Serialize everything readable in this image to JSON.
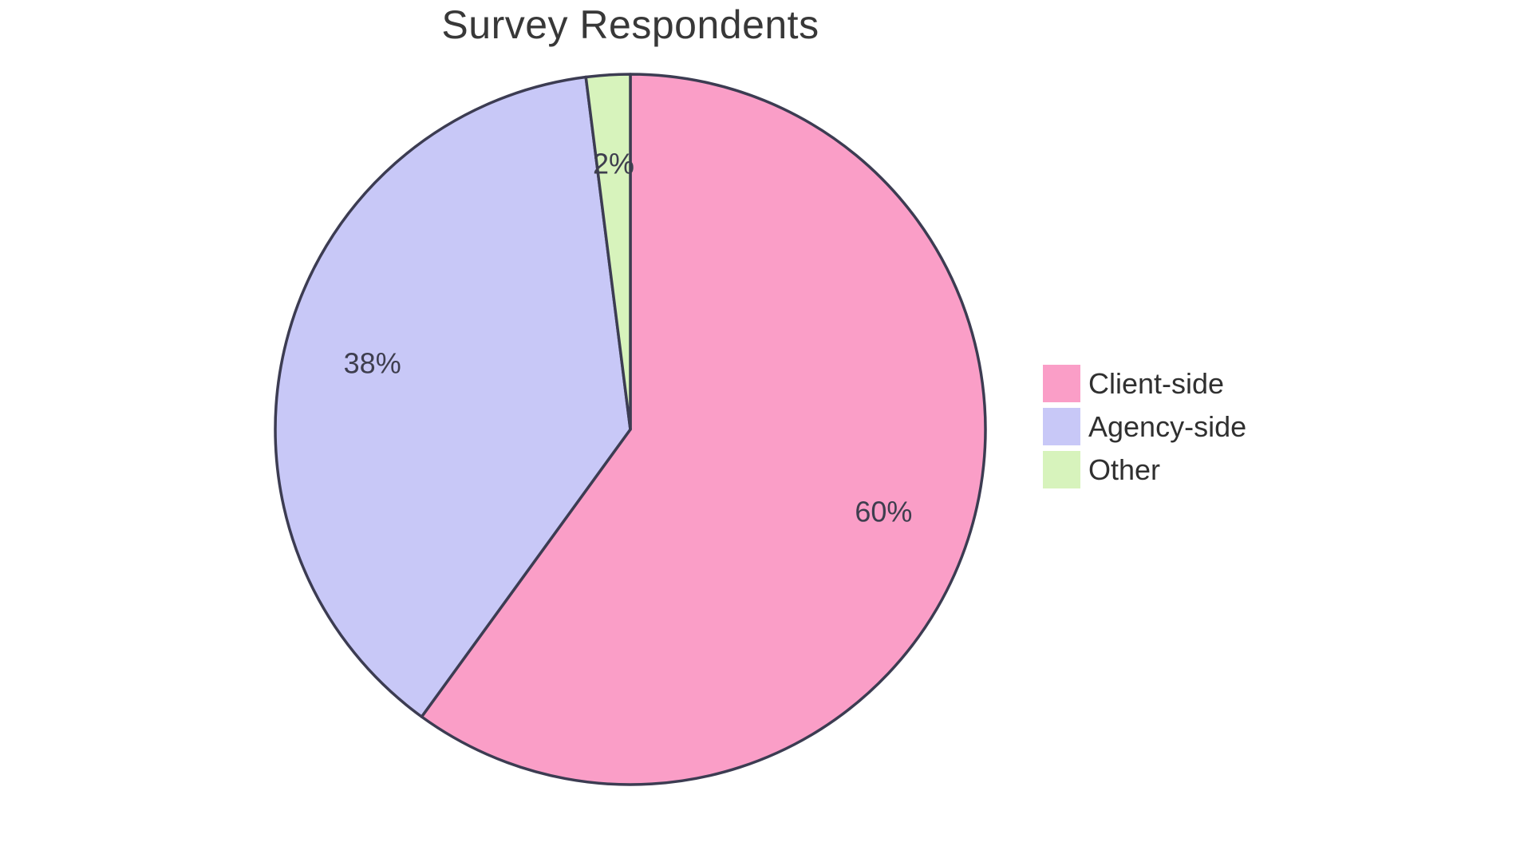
{
  "page": {
    "background": "#FFFFFF"
  },
  "chart_data": {
    "type": "pie",
    "title": "Survey Respondents",
    "categories": [
      "Client-side",
      "Agency-side",
      "Other"
    ],
    "values": [
      60,
      38,
      2
    ],
    "slice_labels": [
      "60%",
      "38%",
      "2%"
    ],
    "slice_colors": [
      "#FA9EC7",
      "#C8C8F7",
      "#D7F3BC"
    ],
    "start_angle_deg": 0,
    "direction": "clockwise",
    "legend_position": "right",
    "legend_labels": [
      "Client-side",
      "Agency-side",
      "Other"
    ]
  },
  "colors": {
    "slice_border": "#3C3C52",
    "slice_label_text": "#3E3E4E",
    "title_text": "#383838",
    "legend_text": "#303030",
    "background": "#FFFFFF"
  }
}
